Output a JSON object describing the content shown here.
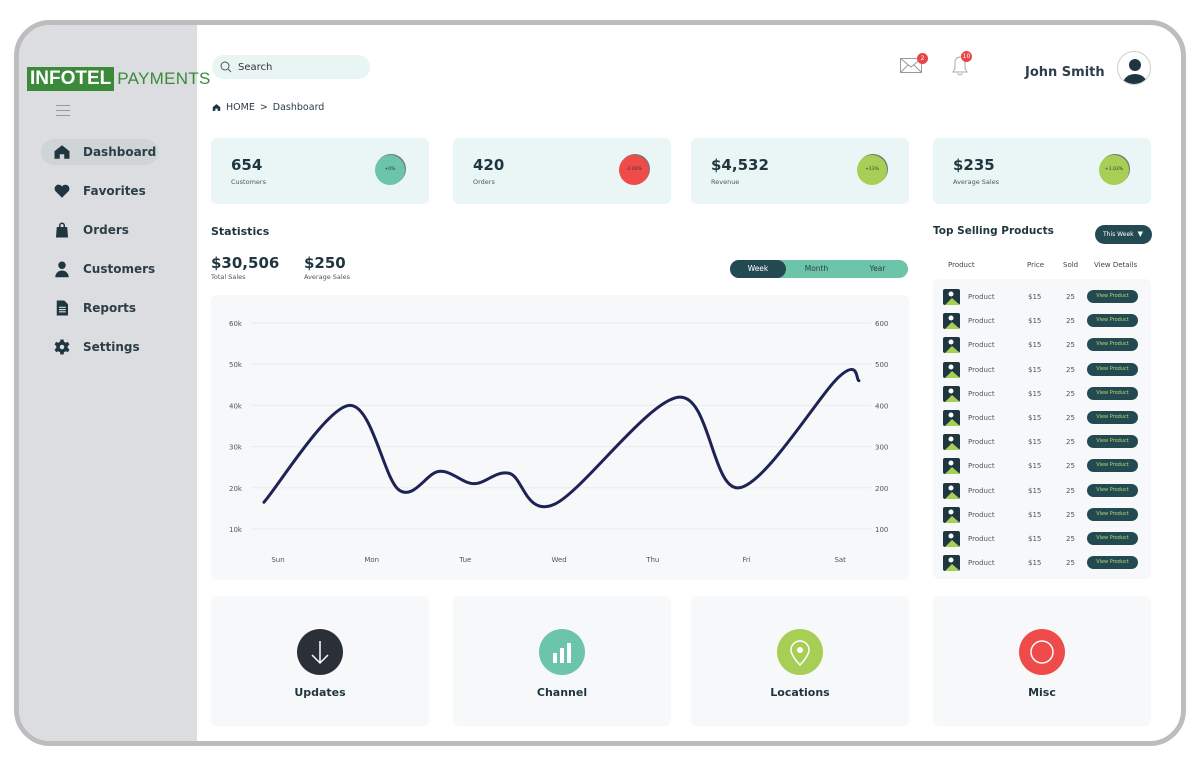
{
  "brand": {
    "part1": "INFOTEL",
    "part2": "PAYMENTS"
  },
  "sidebar": {
    "items": [
      {
        "label": "Dashboard",
        "icon": "home-icon",
        "active": true
      },
      {
        "label": "Favorites",
        "icon": "heart-icon"
      },
      {
        "label": "Orders",
        "icon": "bag-icon"
      },
      {
        "label": "Customers",
        "icon": "user-icon"
      },
      {
        "label": "Reports",
        "icon": "document-icon"
      },
      {
        "label": "Settings",
        "icon": "gear-icon"
      }
    ]
  },
  "header": {
    "search_placeholder": "Search",
    "mail_count": "2",
    "notif_count": "10",
    "user_name": "John Smith"
  },
  "breadcrumb": {
    "home": "HOME",
    "sep": ">",
    "current": "Dashboard"
  },
  "cards": [
    {
      "value": "654",
      "label": "Customers",
      "change": "+0%",
      "color": "#6cc5a8"
    },
    {
      "value": "420",
      "label": "Orders",
      "change": "-2.02%",
      "color": "#ef4b4b"
    },
    {
      "value": "$4,532",
      "label": "Revenue",
      "change": "+13%",
      "color": "#a8cf55"
    },
    {
      "value": "$235",
      "label": "Average Sales",
      "change": "+1.03%",
      "color": "#a8cf55"
    }
  ],
  "statistics": {
    "title": "Statistics",
    "total": "$30,506",
    "total_label": "Total Sales",
    "avg": "$250",
    "avg_label": "Average Sales",
    "periods": [
      "Week",
      "Month",
      "Year"
    ],
    "selected": "Week"
  },
  "chart_data": {
    "type": "line",
    "categories": [
      "Sun",
      "Mon",
      "Tue",
      "Wed",
      "Thu",
      "Fri",
      "Sat"
    ],
    "left_ticks": [
      "10k",
      "20k",
      "30k",
      "40k",
      "50k",
      "60k"
    ],
    "right_ticks": [
      "100",
      "200",
      "300",
      "400",
      "500",
      "600"
    ],
    "ylim": [
      10000,
      60000
    ],
    "line_color": "#1e2356",
    "grid": true,
    "x": [
      -0.15,
      0.76,
      1.29,
      1.72,
      2.09,
      2.47,
      2.95,
      4.28,
      4.92,
      5.99,
      6.2
    ],
    "values": [
      16500,
      40000,
      19500,
      24000,
      21000,
      23500,
      16000,
      42000,
      20000,
      47000,
      46000
    ]
  },
  "top_products": {
    "title": "Top Selling Products",
    "filter": "This Week",
    "columns": [
      "Product",
      "Price",
      "Sold",
      "View Details"
    ],
    "rows": [
      {
        "name": "Product",
        "price": "$15",
        "sold": "25",
        "action": "View Product"
      },
      {
        "name": "Product",
        "price": "$15",
        "sold": "25",
        "action": "View Product"
      },
      {
        "name": "Product",
        "price": "$15",
        "sold": "25",
        "action": "View Product"
      },
      {
        "name": "Product",
        "price": "$15",
        "sold": "25",
        "action": "View Product"
      },
      {
        "name": "Product",
        "price": "$15",
        "sold": "25",
        "action": "View Product"
      },
      {
        "name": "Product",
        "price": "$15",
        "sold": "25",
        "action": "View Product"
      },
      {
        "name": "Product",
        "price": "$15",
        "sold": "25",
        "action": "View Product"
      },
      {
        "name": "Product",
        "price": "$15",
        "sold": "25",
        "action": "View Product"
      },
      {
        "name": "Product",
        "price": "$15",
        "sold": "25",
        "action": "View Product"
      },
      {
        "name": "Product",
        "price": "$15",
        "sold": "25",
        "action": "View Product"
      },
      {
        "name": "Product",
        "price": "$15",
        "sold": "25",
        "action": "View Product"
      },
      {
        "name": "Product",
        "price": "$15",
        "sold": "25",
        "action": "View Product"
      }
    ]
  },
  "tiles": [
    {
      "label": "Updates",
      "icon": "arrow-down-icon",
      "color": "#2a2f38"
    },
    {
      "label": "Channel",
      "icon": "bar-chart-icon",
      "color": "#6cc5a8"
    },
    {
      "label": "Locations",
      "icon": "location-pin-icon",
      "color": "#a8cf55"
    },
    {
      "label": "Misc",
      "icon": "circle-icon",
      "color": "#ef4b4b"
    }
  ]
}
